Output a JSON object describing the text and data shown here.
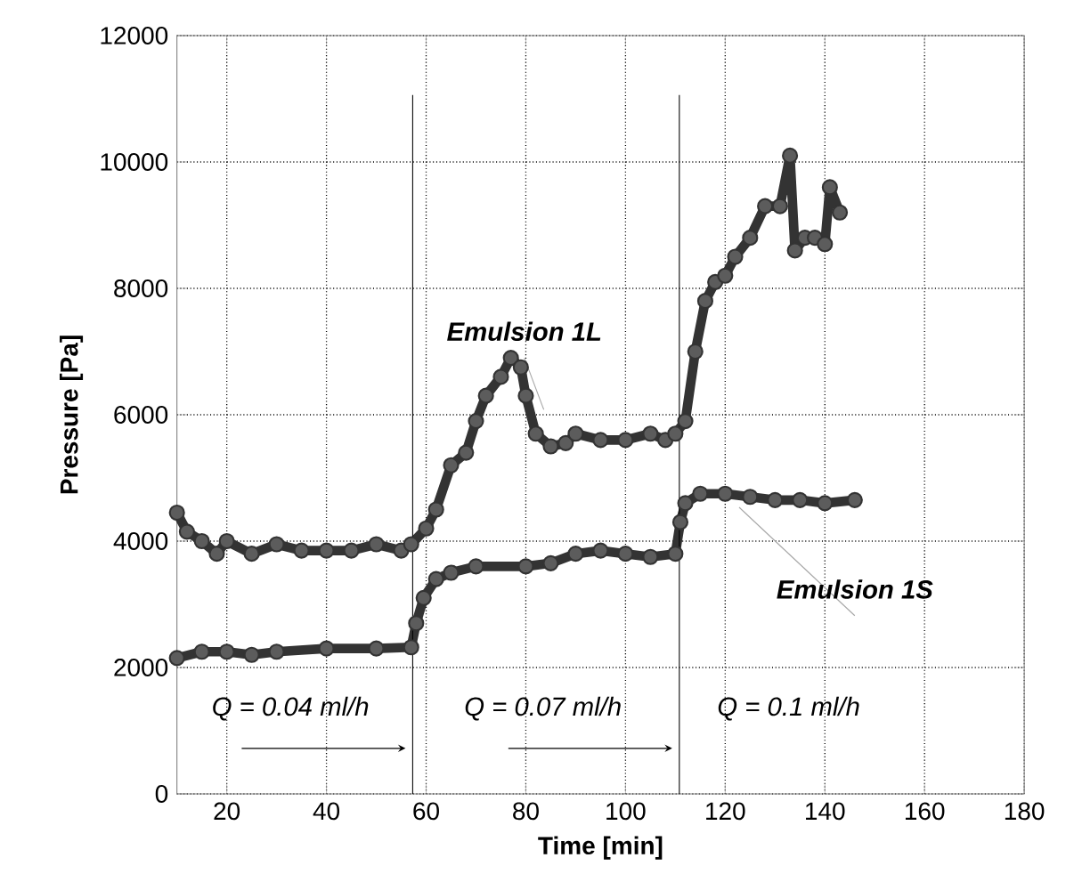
{
  "chart_data": {
    "type": "line",
    "xlabel": "Time [min]",
    "ylabel": "Pressure [Pa]",
    "xlim": [
      10,
      180
    ],
    "xticks": [
      20,
      40,
      60,
      80,
      100,
      120,
      140,
      160,
      180
    ],
    "ylim": [
      0,
      12000
    ],
    "yticks": [
      0,
      2000,
      4000,
      6000,
      8000,
      10000,
      12000
    ],
    "grid": true,
    "marker": "circle",
    "line_style": "solid",
    "series": [
      {
        "name": "Emulsion 1L",
        "color": "#333333",
        "x": [
          10,
          12,
          15,
          18,
          20,
          25,
          30,
          35,
          40,
          45,
          50,
          55,
          57,
          60,
          62,
          65,
          68,
          70,
          72,
          75,
          77,
          79,
          80,
          82,
          85,
          88,
          90,
          95,
          100,
          105,
          108,
          110,
          112,
          114,
          116,
          118,
          120,
          122,
          125,
          128,
          131,
          133,
          134,
          136,
          138,
          140,
          141,
          143
        ],
        "values": [
          4450,
          4150,
          4000,
          3800,
          4000,
          3800,
          3950,
          3850,
          3850,
          3850,
          3950,
          3850,
          3950,
          4200,
          4500,
          5200,
          5400,
          5900,
          6300,
          6600,
          6900,
          6750,
          6300,
          5700,
          5500,
          5550,
          5700,
          5600,
          5600,
          5700,
          5600,
          5700,
          5900,
          7000,
          7800,
          8100,
          8200,
          8500,
          8800,
          9300,
          9300,
          10100,
          8600,
          8800,
          8800,
          8700,
          9600,
          9200
        ]
      },
      {
        "name": "Emulsion 1S",
        "color": "#333333",
        "x": [
          10,
          15,
          20,
          25,
          30,
          40,
          50,
          57,
          58,
          59.5,
          62,
          65,
          70,
          80,
          85,
          90,
          95,
          100,
          105,
          110,
          111,
          112,
          115,
          120,
          125,
          130,
          135,
          140,
          146
        ],
        "values": [
          2150,
          2250,
          2250,
          2200,
          2250,
          2300,
          2300,
          2320,
          2700,
          3100,
          3400,
          3500,
          3600,
          3600,
          3650,
          3800,
          3850,
          3800,
          3750,
          3800,
          4300,
          4600,
          4750,
          4750,
          4700,
          4650,
          4650,
          4600,
          4650
        ]
      }
    ],
    "ref_lines": [
      {
        "axis": "x",
        "value": 57.3,
        "color": "#000000"
      },
      {
        "axis": "x",
        "value": 110.8,
        "color": "#000000"
      }
    ],
    "annotations": [
      "Q = 0.04 ml/h",
      "Q = 0.07 ml/h",
      "Q = 0.1 ml/h"
    ]
  }
}
